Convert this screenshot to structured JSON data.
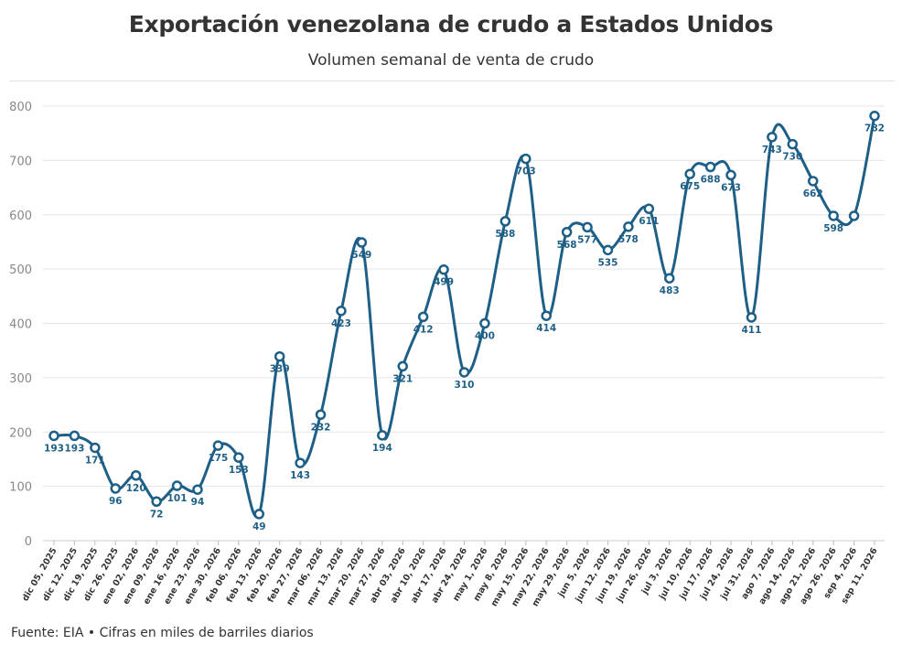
{
  "chart_data": {
    "type": "line",
    "title": "Exportación venezolana de crudo a Estados Unidos",
    "subtitle": "Volumen semanal de venta de crudo",
    "xlabel": "",
    "ylabel": "",
    "ylim": [
      0,
      800
    ],
    "yticks": [
      0,
      100,
      200,
      300,
      400,
      500,
      600,
      700,
      800
    ],
    "grid": true,
    "line_color": "#1d5f86",
    "categories": [
      "dic 05, 2025",
      "dic 12, 2025",
      "dic 19, 2025",
      "dic 26, 2025",
      "ene 02, 2026",
      "ene 09, 2026",
      "ene 16, 2026",
      "ene 23, 2026",
      "ene 30, 2026",
      "feb 06, 2026",
      "feb 13, 2026",
      "feb 20, 2026",
      "feb 27, 2026",
      "mar 06, 2026",
      "mar 13, 2026",
      "mar 20, 2026",
      "mar 27, 2026",
      "abr 03, 2026",
      "abr 10, 2026",
      "abr 17, 2026",
      "abr 24, 2026",
      "may 1, 2026",
      "may 8, 2026",
      "may 15, 2026",
      "may 22, 2026",
      "may 29, 2026",
      "jun 5, 2026",
      "jun 12, 2026",
      "jun 19, 2026",
      "jun 26, 2026",
      "jul 3, 2026",
      "jul 10, 2026",
      "jul 17, 2026",
      "jul 24, 2026",
      "jul 31, 2026",
      "ago 7, 2026",
      "ago 14, 2026",
      "ago 21, 2026",
      "ago 26, 2026",
      "sep 4, 2026",
      "sep 11, 2026"
    ],
    "series": [
      {
        "values": [
          193,
          193,
          171,
          96,
          120,
          72,
          101,
          94,
          175,
          153,
          49,
          339,
          143,
          232,
          423,
          549,
          194,
          321,
          412,
          499,
          310,
          400,
          588,
          703,
          414,
          568,
          577,
          535,
          578,
          611,
          483,
          675,
          688,
          673,
          411,
          743,
          730,
          662,
          598,
          598,
          782
        ],
        "labels": [
          "193",
          "193",
          "171",
          "96",
          "120",
          "72",
          "101",
          "94",
          "175",
          "153",
          "49",
          "339",
          "143",
          "232",
          "423",
          "549",
          "194",
          "321",
          "412",
          "499",
          "310",
          "400",
          "588",
          "703",
          "414",
          "568",
          "577",
          "535",
          "578",
          "611",
          "483",
          "675",
          "688",
          "673",
          "411",
          "743",
          "730",
          "662",
          "598",
          "",
          "782"
        ]
      }
    ]
  },
  "footer": "Fuente: EIA • Cifras en miles de barriles diarios"
}
